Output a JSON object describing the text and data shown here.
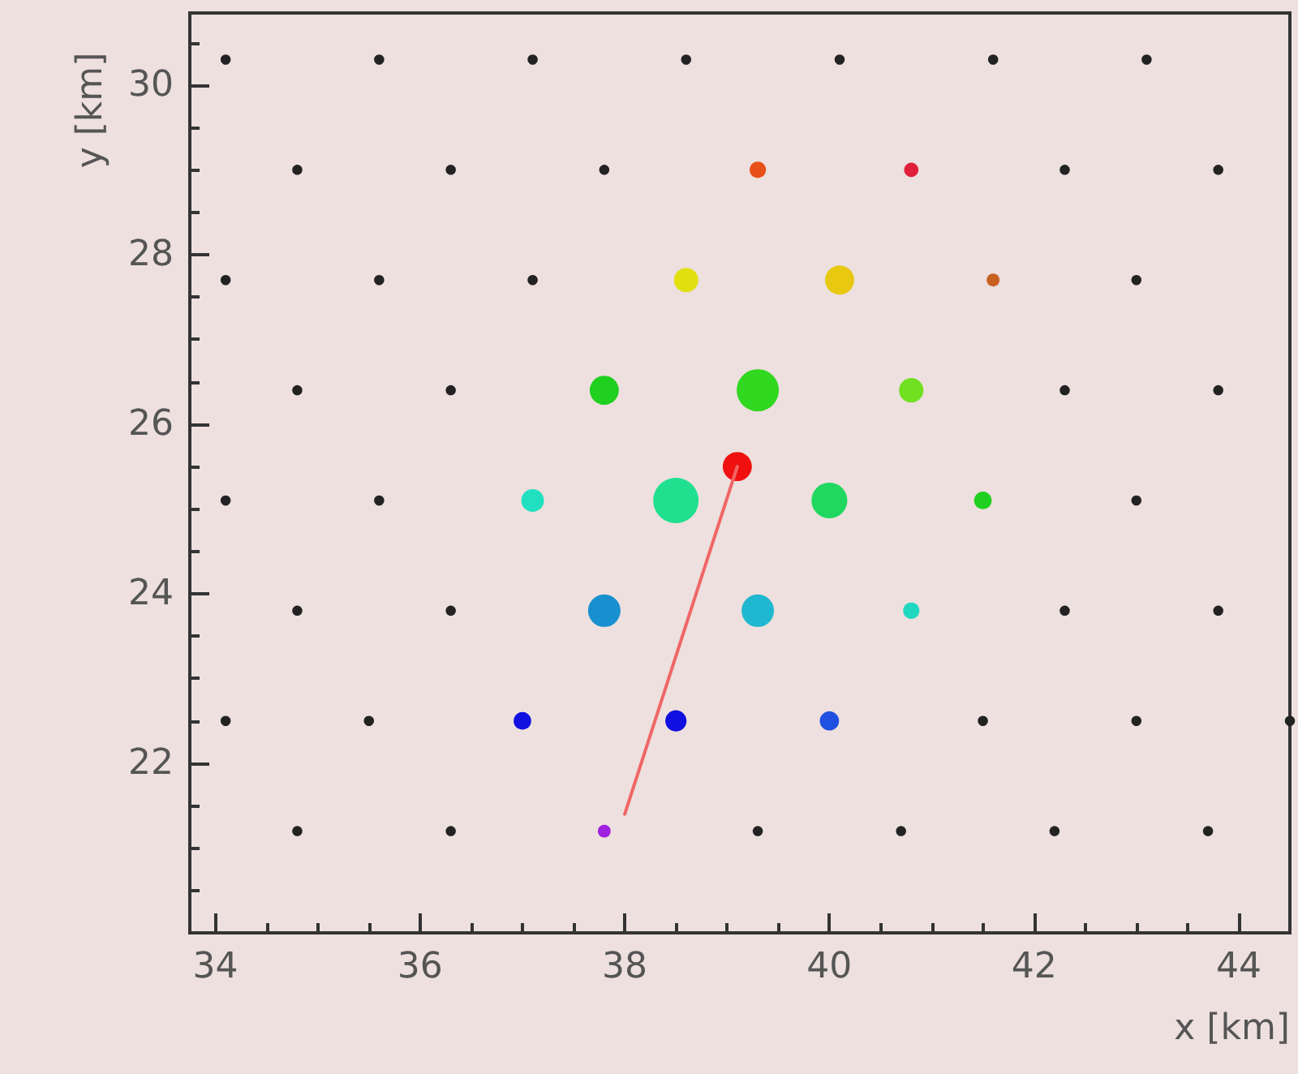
{
  "chart_data": {
    "type": "bubble",
    "xlabel": "x [km]",
    "ylabel": "y [km]",
    "xlim": [
      33.75,
      44.5
    ],
    "ylim": [
      20.0,
      30.85
    ],
    "xticks": [
      34,
      36,
      38,
      40,
      42,
      44
    ],
    "yticks": [
      22,
      24,
      26,
      28,
      30
    ],
    "grid": false,
    "series": [
      {
        "type": "line",
        "color": "#f06666",
        "marker": "none",
        "line_style": "solid",
        "x": [
          39.1,
          38.0
        ],
        "values": [
          25.5,
          21.4
        ]
      },
      {
        "marker": "circle",
        "x": [
          34.1,
          35.6,
          37.1,
          38.6,
          40.1,
          41.6,
          43.1,
          34.8,
          36.3,
          37.8,
          39.3,
          40.8,
          42.3,
          43.8,
          34.1,
          35.6,
          37.1,
          38.6,
          40.1,
          41.6,
          43.0,
          34.8,
          36.3,
          37.8,
          39.3,
          40.8,
          42.3,
          43.8,
          34.1,
          35.6,
          37.1,
          38.5,
          40.0,
          41.5,
          43.0,
          34.8,
          36.3,
          37.8,
          39.3,
          40.8,
          42.3,
          43.8,
          34.1,
          35.5,
          37.0,
          38.5,
          40.0,
          41.5,
          43.0,
          44.5,
          34.8,
          36.3,
          37.8,
          39.3,
          40.7,
          42.2,
          43.7,
          39.1
        ],
        "values": [
          30.3,
          30.3,
          30.3,
          30.3,
          30.3,
          30.3,
          30.3,
          29.0,
          29.0,
          29.0,
          29.0,
          29.0,
          29.0,
          29.0,
          27.7,
          27.7,
          27.7,
          27.7,
          27.7,
          27.7,
          27.7,
          26.4,
          26.4,
          26.4,
          26.4,
          26.4,
          26.4,
          26.4,
          25.1,
          25.1,
          25.1,
          25.1,
          25.1,
          25.1,
          25.1,
          23.8,
          23.8,
          23.8,
          23.8,
          23.8,
          23.8,
          23.8,
          22.5,
          22.5,
          22.5,
          22.5,
          22.5,
          22.5,
          22.5,
          22.5,
          21.2,
          21.2,
          21.2,
          21.2,
          21.2,
          21.2,
          21.2,
          25.5
        ],
        "sizes": [
          0.05,
          0.05,
          0.05,
          0.05,
          0.05,
          0.05,
          0.05,
          0.05,
          0.05,
          0.05,
          0.13,
          0.1,
          0.05,
          0.05,
          0.05,
          0.05,
          0.05,
          0.29,
          0.41,
          0.08,
          0.05,
          0.05,
          0.05,
          0.41,
          0.86,
          0.29,
          0.05,
          0.05,
          0.05,
          0.05,
          0.25,
          1,
          0.62,
          0.15,
          0.05,
          0.05,
          0.05,
          0.51,
          0.51,
          0.13,
          0.05,
          0.05,
          0.05,
          0.05,
          0.15,
          0.22,
          0.18,
          0.05,
          0.05,
          0.05,
          0.05,
          0.05,
          0.08,
          0.05,
          0.05,
          0.05,
          0.05,
          0.41
        ],
        "colors": [
          "#222222",
          "#222222",
          "#222222",
          "#222222",
          "#222222",
          "#222222",
          "#222222",
          "#222222",
          "#222222",
          "#222222",
          "#e8501a",
          "#e0203a",
          "#222222",
          "#222222",
          "#222222",
          "#222222",
          "#222222",
          "#e0e010",
          "#e8c810",
          "#c86020",
          "#222222",
          "#222222",
          "#222222",
          "#20d020",
          "#30d820",
          "#70e020",
          "#222222",
          "#222222",
          "#222222",
          "#222222",
          "#20e0c0",
          "#20e090",
          "#20d860",
          "#20d020",
          "#222222",
          "#222222",
          "#222222",
          "#1890d0",
          "#20b8d0",
          "#20d8c0",
          "#222222",
          "#222222",
          "#222222",
          "#222222",
          "#1010e0",
          "#1010e0",
          "#2050e0",
          "#222222",
          "#222222",
          "#222222",
          "#222222",
          "#222222",
          "#a020e0",
          "#222222",
          "#222222",
          "#222222",
          "#222222",
          "#f01010"
        ]
      }
    ]
  }
}
